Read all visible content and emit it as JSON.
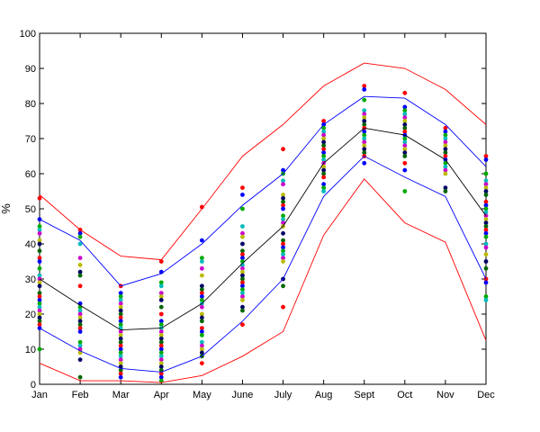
{
  "chart_data": {
    "type": "line",
    "title": "",
    "xlabel": "",
    "ylabel": "%",
    "ylim": [
      0,
      100
    ],
    "y_ticks": [
      0,
      10,
      20,
      30,
      40,
      50,
      60,
      70,
      80,
      90,
      100
    ],
    "categories": [
      "Jan",
      "Feb",
      "Mar",
      "Apr",
      "May",
      "June",
      "July",
      "Aug",
      "Sept",
      "Oct",
      "Nov",
      "Dec"
    ],
    "grid": false,
    "legend": "none",
    "series": [
      {
        "color": "#ff0000",
        "values": [
          54,
          44,
          36.5,
          35.5,
          50,
          65,
          74,
          85,
          91.5,
          90,
          84,
          74
        ]
      },
      {
        "color": "#0000ff",
        "values": [
          47,
          41,
          28,
          31.5,
          40,
          51,
          60,
          74,
          82,
          81.5,
          74,
          62
        ]
      },
      {
        "color": "#000000",
        "values": [
          30,
          22.5,
          15.5,
          16,
          23,
          34.5,
          45,
          63,
          73,
          71,
          64,
          48
        ]
      },
      {
        "color": "#0000ff",
        "values": [
          16,
          9.5,
          4.5,
          3.5,
          8,
          18,
          30,
          53.5,
          65,
          59,
          53.5,
          30
        ]
      },
      {
        "color": "#ff0000",
        "values": [
          6,
          1,
          1,
          0.5,
          2.5,
          8,
          15,
          42.5,
          58.5,
          46,
          40.5,
          12.5
        ]
      }
    ],
    "scatter": {
      "Jan": [
        53,
        47,
        45,
        44,
        43,
        41,
        40,
        38,
        36,
        35,
        33,
        31,
        30,
        29,
        28,
        26,
        25,
        24,
        23,
        22,
        21,
        20,
        19,
        18,
        17,
        16,
        10
      ],
      "Feb": [
        44,
        43,
        42,
        40,
        36,
        34,
        32,
        31,
        28,
        23,
        22,
        21,
        20,
        19,
        18,
        17,
        16,
        15,
        12,
        11,
        10,
        9,
        7,
        2
      ],
      "Mar": [
        28,
        26,
        25,
        24,
        23,
        22,
        21,
        20,
        19,
        18,
        17,
        16,
        15,
        14,
        13,
        12,
        11,
        10,
        9,
        8,
        7,
        6,
        5,
        4,
        3,
        2
      ],
      "Apr": [
        35,
        32,
        29,
        28,
        26,
        25,
        24,
        22,
        20,
        18,
        17,
        16,
        15,
        14,
        13,
        12,
        11,
        10,
        9,
        8,
        7,
        6,
        5,
        4,
        3,
        2,
        1
      ],
      "May": [
        50.5,
        41,
        36,
        35,
        33,
        31,
        28,
        27,
        26,
        25,
        24,
        23,
        22,
        20,
        19,
        18,
        16,
        15,
        14,
        12,
        11,
        10,
        9,
        8,
        6
      ],
      "June": [
        56,
        54,
        50,
        45,
        43,
        42,
        40,
        38,
        37,
        36,
        35,
        34,
        33,
        32,
        31,
        30,
        29,
        28,
        27,
        26,
        25,
        24,
        22,
        21,
        17
      ],
      "July": [
        67,
        61,
        60,
        58,
        57,
        54,
        53,
        52,
        51,
        50,
        48,
        47,
        46,
        45,
        43,
        41,
        40,
        39,
        38,
        37,
        36,
        35,
        30,
        28,
        22
      ],
      "Aug": [
        75,
        74,
        73,
        72,
        71,
        70,
        69,
        68,
        67,
        66,
        65,
        64,
        63,
        62,
        61,
        60,
        59,
        57,
        56,
        55
      ],
      "Sept": [
        85,
        84,
        81,
        78,
        77,
        76,
        75,
        74,
        73,
        72,
        71,
        70,
        69,
        68,
        67,
        66,
        65,
        63
      ],
      "Oct": [
        83,
        79,
        78,
        77,
        76,
        75,
        74,
        73,
        72,
        71,
        70,
        69,
        68,
        67,
        66,
        65,
        63,
        61,
        55
      ],
      "Nov": [
        73,
        72,
        71,
        70,
        69,
        68,
        67,
        66,
        65,
        64,
        63,
        62,
        61,
        60,
        56,
        55
      ],
      "Dec": [
        65,
        64,
        60,
        58,
        57,
        56,
        55,
        54,
        52,
        51,
        50,
        49,
        48,
        47,
        46,
        45,
        44,
        43,
        42,
        40,
        39,
        37,
        35,
        33,
        30,
        29,
        25,
        24
      ]
    },
    "point_colors": [
      "#ff0000",
      "#0000ff",
      "#00aa00",
      "#00bbbb",
      "#cc00cc",
      "#bbbb00",
      "#000066",
      "#006600"
    ]
  }
}
